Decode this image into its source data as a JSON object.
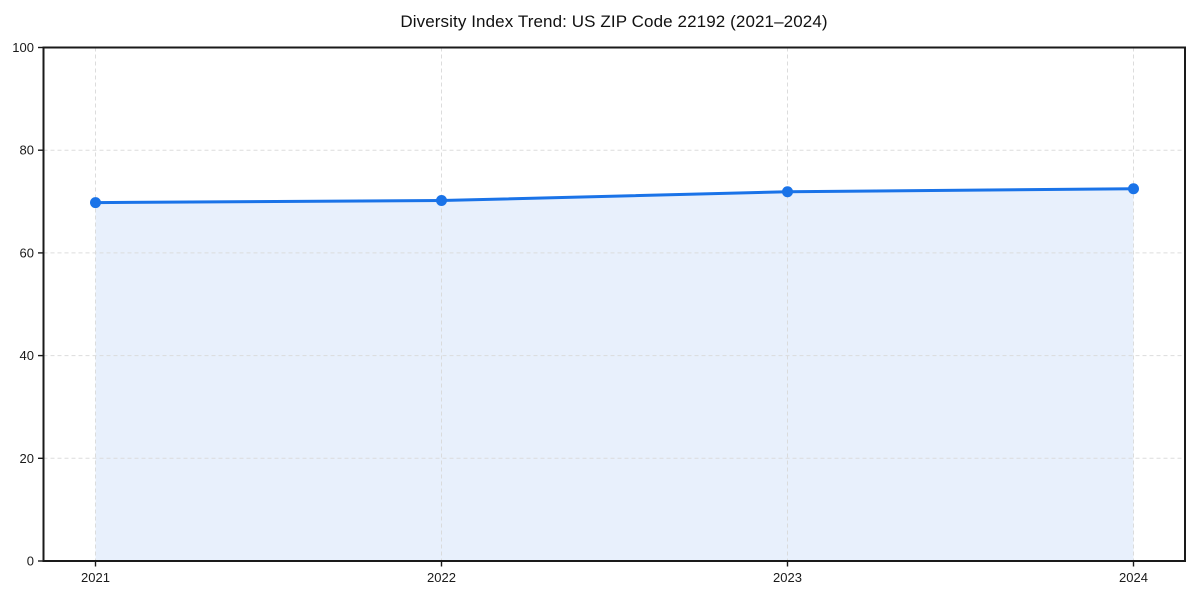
{
  "title": "Diversity Index Trend: US ZIP Code 22192 (2021–2024)",
  "chart_data": {
    "type": "area",
    "title": "Diversity Index Trend: US ZIP Code 22192 (2021–2024)",
    "x": [
      2021,
      2022,
      2023,
      2024
    ],
    "xtick_labels": [
      "2021",
      "2022",
      "2023",
      "2024"
    ],
    "series": [
      {
        "name": "Diversity Index",
        "values": [
          69.8,
          70.2,
          71.9,
          72.5
        ]
      }
    ],
    "xlabel": "",
    "ylabel": "",
    "ylim": [
      0,
      100
    ],
    "yticks": [
      0,
      20,
      40,
      60,
      80,
      100
    ],
    "grid": "dashed",
    "legend": "none",
    "marker": "circle",
    "colors": {
      "line": "#1a73e8",
      "marker": "#1a73e8",
      "fill": "#e8f0fc",
      "grid": "#d9d9d9",
      "axis": "#1a1a1a",
      "text": "#1a1a1a",
      "background": "#ffffff"
    }
  }
}
